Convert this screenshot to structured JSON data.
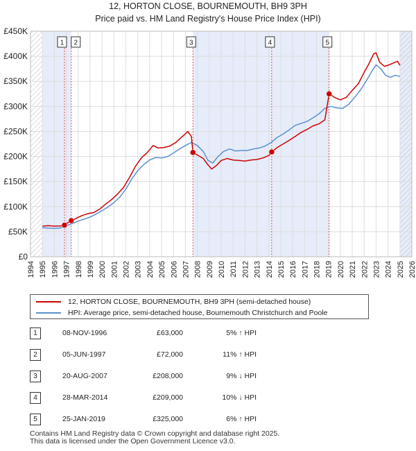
{
  "title": "12, HORTON CLOSE, BOURNEMOUTH, BH9 3PH",
  "subtitle": "Price paid vs. HM Land Registry's House Price Index (HPI)",
  "colors": {
    "property": "#cc0000",
    "hpi": "#5b8fd0",
    "band": "#e6ecfa",
    "grid": "#dddddd",
    "vline": "#e05555"
  },
  "chart_data": {
    "type": "line",
    "x_range": [
      1994,
      2026
    ],
    "y_range": [
      0,
      450000
    ],
    "x_ticks": [
      "1994",
      "1995",
      "1996",
      "1997",
      "1998",
      "1999",
      "2000",
      "2001",
      "2002",
      "2003",
      "2004",
      "2005",
      "2006",
      "2007",
      "2008",
      "2009",
      "2010",
      "2011",
      "2012",
      "2013",
      "2014",
      "2015",
      "2016",
      "2017",
      "2018",
      "2019",
      "2020",
      "2021",
      "2022",
      "2023",
      "2024",
      "2025",
      "2026"
    ],
    "y_ticks": [
      {
        "value": 0,
        "label": "£0"
      },
      {
        "value": 50000,
        "label": "£50K"
      },
      {
        "value": 100000,
        "label": "£100K"
      },
      {
        "value": 150000,
        "label": "£150K"
      },
      {
        "value": 200000,
        "label": "£200K"
      },
      {
        "value": 250000,
        "label": "£250K"
      },
      {
        "value": 300000,
        "label": "£300K"
      },
      {
        "value": 350000,
        "label": "£350K"
      },
      {
        "value": 400000,
        "label": "£400K"
      },
      {
        "value": 450000,
        "label": "£450K"
      }
    ],
    "grid": true,
    "series": [
      {
        "name": "12, HORTON CLOSE, BOURNEMOUTH, BH9 3PH (semi-detached house)",
        "points": [
          [
            1995.0,
            61000
          ],
          [
            1995.5,
            62000
          ],
          [
            1996.0,
            61000
          ],
          [
            1996.5,
            61500
          ],
          [
            1996.85,
            63000
          ],
          [
            1997.0,
            66000
          ],
          [
            1997.42,
            72000
          ],
          [
            1997.8,
            76000
          ],
          [
            1998.3,
            82000
          ],
          [
            1998.8,
            86000
          ],
          [
            1999.3,
            88000
          ],
          [
            1999.8,
            95000
          ],
          [
            2000.3,
            105000
          ],
          [
            2000.8,
            114000
          ],
          [
            2001.3,
            125000
          ],
          [
            2001.8,
            138000
          ],
          [
            2002.3,
            158000
          ],
          [
            2002.8,
            180000
          ],
          [
            2003.3,
            197000
          ],
          [
            2003.8,
            208000
          ],
          [
            2004.3,
            222000
          ],
          [
            2004.7,
            217000
          ],
          [
            2005.2,
            218000
          ],
          [
            2005.7,
            221000
          ],
          [
            2006.2,
            228000
          ],
          [
            2006.6,
            237000
          ],
          [
            2006.9,
            243000
          ],
          [
            2007.2,
            250000
          ],
          [
            2007.5,
            240000
          ],
          [
            2007.63,
            208000
          ],
          [
            2008.0,
            203000
          ],
          [
            2008.5,
            196000
          ],
          [
            2008.9,
            183000
          ],
          [
            2009.2,
            175000
          ],
          [
            2009.6,
            182000
          ],
          [
            2010.0,
            192000
          ],
          [
            2010.5,
            196000
          ],
          [
            2011.0,
            193000
          ],
          [
            2011.5,
            192000
          ],
          [
            2012.0,
            191000
          ],
          [
            2012.5,
            193000
          ],
          [
            2013.0,
            194000
          ],
          [
            2013.5,
            197000
          ],
          [
            2014.0,
            202000
          ],
          [
            2014.24,
            209000
          ],
          [
            2014.7,
            218000
          ],
          [
            2015.2,
            225000
          ],
          [
            2015.7,
            232000
          ],
          [
            2016.2,
            240000
          ],
          [
            2016.7,
            248000
          ],
          [
            2017.2,
            254000
          ],
          [
            2017.7,
            261000
          ],
          [
            2018.2,
            265000
          ],
          [
            2018.7,
            273000
          ],
          [
            2019.06,
            325000
          ],
          [
            2019.5,
            318000
          ],
          [
            2020.0,
            313000
          ],
          [
            2020.5,
            318000
          ],
          [
            2021.0,
            332000
          ],
          [
            2021.5,
            345000
          ],
          [
            2022.0,
            368000
          ],
          [
            2022.4,
            385000
          ],
          [
            2022.8,
            405000
          ],
          [
            2023.0,
            407000
          ],
          [
            2023.3,
            388000
          ],
          [
            2023.7,
            380000
          ],
          [
            2024.0,
            382000
          ],
          [
            2024.4,
            386000
          ],
          [
            2024.8,
            390000
          ],
          [
            2025.0,
            382000
          ]
        ]
      },
      {
        "name": "HPI: Average price, semi-detached house, Bournemouth Christchurch and Poole",
        "points": [
          [
            1995.0,
            58000
          ],
          [
            1995.5,
            57000
          ],
          [
            1996.0,
            56500
          ],
          [
            1996.5,
            57500
          ],
          [
            1997.0,
            62000
          ],
          [
            1997.5,
            66000
          ],
          [
            1998.0,
            71000
          ],
          [
            1998.5,
            75000
          ],
          [
            1999.0,
            79000
          ],
          [
            1999.5,
            85000
          ],
          [
            2000.0,
            92000
          ],
          [
            2000.5,
            99000
          ],
          [
            2001.0,
            108000
          ],
          [
            2001.5,
            119000
          ],
          [
            2002.0,
            135000
          ],
          [
            2002.5,
            155000
          ],
          [
            2003.0,
            172000
          ],
          [
            2003.5,
            184000
          ],
          [
            2004.0,
            193000
          ],
          [
            2004.5,
            198000
          ],
          [
            2005.0,
            197000
          ],
          [
            2005.5,
            200000
          ],
          [
            2006.0,
            207000
          ],
          [
            2006.5,
            215000
          ],
          [
            2007.0,
            222000
          ],
          [
            2007.5,
            228000
          ],
          [
            2008.0,
            222000
          ],
          [
            2008.5,
            210000
          ],
          [
            2008.9,
            192000
          ],
          [
            2009.3,
            187000
          ],
          [
            2009.7,
            199000
          ],
          [
            2010.2,
            210000
          ],
          [
            2010.7,
            215000
          ],
          [
            2011.2,
            211000
          ],
          [
            2011.7,
            212000
          ],
          [
            2012.2,
            212000
          ],
          [
            2012.7,
            215000
          ],
          [
            2013.2,
            217000
          ],
          [
            2013.7,
            221000
          ],
          [
            2014.2,
            228000
          ],
          [
            2014.7,
            238000
          ],
          [
            2015.2,
            245000
          ],
          [
            2015.7,
            253000
          ],
          [
            2016.2,
            262000
          ],
          [
            2016.7,
            266000
          ],
          [
            2017.2,
            270000
          ],
          [
            2017.7,
            277000
          ],
          [
            2018.2,
            285000
          ],
          [
            2018.7,
            296000
          ],
          [
            2019.2,
            300000
          ],
          [
            2019.7,
            297000
          ],
          [
            2020.2,
            296000
          ],
          [
            2020.7,
            304000
          ],
          [
            2021.2,
            318000
          ],
          [
            2021.7,
            333000
          ],
          [
            2022.2,
            352000
          ],
          [
            2022.7,
            372000
          ],
          [
            2023.0,
            383000
          ],
          [
            2023.4,
            375000
          ],
          [
            2023.8,
            362000
          ],
          [
            2024.2,
            358000
          ],
          [
            2024.6,
            362000
          ],
          [
            2025.0,
            360000
          ]
        ]
      }
    ],
    "sales": [
      {
        "marker": "1",
        "x": 1996.85,
        "value": 63000
      },
      {
        "marker": "2",
        "x": 1997.42,
        "value": 72000
      },
      {
        "marker": "3",
        "x": 2007.63,
        "value": 208000
      },
      {
        "marker": "4",
        "x": 2014.24,
        "value": 209000
      },
      {
        "marker": "5",
        "x": 2019.06,
        "value": 325000
      }
    ],
    "shaded_periods": [
      [
        1995.0,
        1997.42
      ],
      [
        2007.63,
        2019.06
      ],
      [
        2025.0,
        2026.0
      ]
    ],
    "hatched_periods": [
      [
        1994.0,
        1995.0
      ],
      [
        2025.0,
        2026.0
      ]
    ]
  },
  "legend": {
    "property_label": "12, HORTON CLOSE, BOURNEMOUTH, BH9 3PH (semi-detached house)",
    "hpi_label": "HPI: Average price, semi-detached house, Bournemouth Christchurch and Poole"
  },
  "sales_table": [
    {
      "num": "1",
      "date": "08-NOV-1996",
      "price": "£63,000",
      "hpi": "5% ↑ HPI"
    },
    {
      "num": "2",
      "date": "05-JUN-1997",
      "price": "£72,000",
      "hpi": "11% ↑ HPI"
    },
    {
      "num": "3",
      "date": "20-AUG-2007",
      "price": "£208,000",
      "hpi": "9% ↓ HPI"
    },
    {
      "num": "4",
      "date": "28-MAR-2014",
      "price": "£209,000",
      "hpi": "10% ↓ HPI"
    },
    {
      "num": "5",
      "date": "25-JAN-2019",
      "price": "£325,000",
      "hpi": "6% ↑ HPI"
    }
  ],
  "footer": {
    "line1": "Contains HM Land Registry data © Crown copyright and database right 2025.",
    "line2": "This data is licensed under the Open Government Licence v3.0."
  }
}
